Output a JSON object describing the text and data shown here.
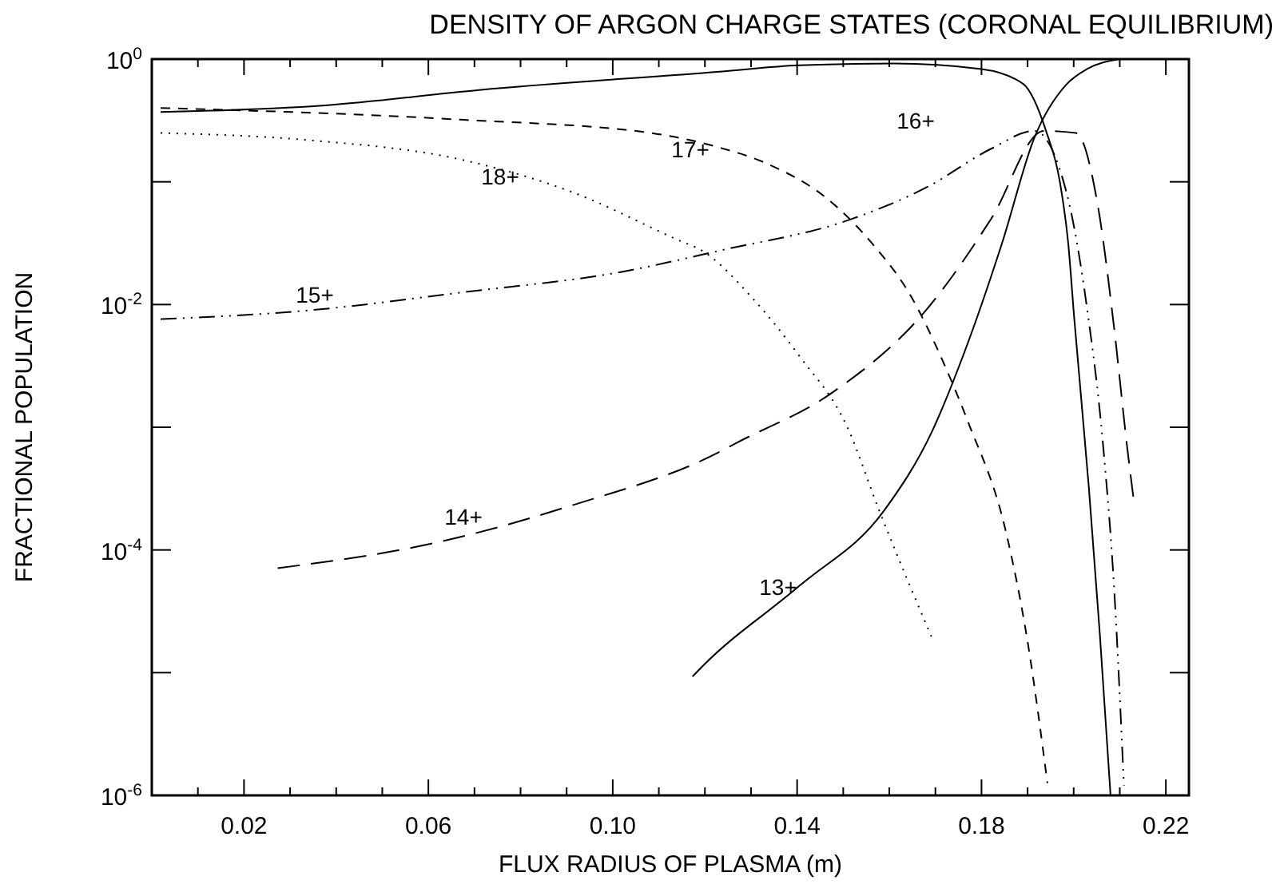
{
  "chart_data": {
    "type": "line",
    "title": "DENSITY OF ARGON CHARGE STATES (CORONAL EQUILIBRIUM)",
    "xlabel": "FLUX RADIUS OF PLASMA (m)",
    "ylabel": "FRACTIONAL POPULATION",
    "log": "y",
    "xlim": [
      0,
      0.225
    ],
    "ylim": [
      1e-06,
      1
    ],
    "xticks": [
      {
        "value": 0.01,
        "label": null
      },
      {
        "value": 0.02,
        "label": "0.02"
      },
      {
        "value": 0.03,
        "label": null
      },
      {
        "value": 0.04,
        "label": null
      },
      {
        "value": 0.05,
        "label": null
      },
      {
        "value": 0.06,
        "label": "0.06"
      },
      {
        "value": 0.07,
        "label": null
      },
      {
        "value": 0.08,
        "label": null
      },
      {
        "value": 0.09,
        "label": null
      },
      {
        "value": 0.1,
        "label": "0.10"
      },
      {
        "value": 0.11,
        "label": null
      },
      {
        "value": 0.12,
        "label": null
      },
      {
        "value": 0.13,
        "label": null
      },
      {
        "value": 0.14,
        "label": "0.14"
      },
      {
        "value": 0.15,
        "label": null
      },
      {
        "value": 0.16,
        "label": null
      },
      {
        "value": 0.17,
        "label": null
      },
      {
        "value": 0.18,
        "label": "0.18"
      },
      {
        "value": 0.19,
        "label": null
      },
      {
        "value": 0.2,
        "label": null
      },
      {
        "value": 0.21,
        "label": null
      },
      {
        "value": 0.22,
        "label": "0.22"
      }
    ],
    "yticks": [
      {
        "value": 1e-06,
        "label": "10$^{-6}$"
      },
      {
        "value": 1e-05,
        "label": null
      },
      {
        "value": 0.0001,
        "label": "10$^{-4}$"
      },
      {
        "value": 0.001,
        "label": null
      },
      {
        "value": 0.01,
        "label": "10$^{-2}$"
      },
      {
        "value": 0.1,
        "label": null
      },
      {
        "value": 1,
        "label": "10$^{0}$"
      }
    ],
    "series": [
      {
        "name": "13+",
        "color": "#000000",
        "line_style": "solid",
        "x": [
          0.1173,
          0.1197,
          0.1405,
          0.1589,
          0.1693,
          0.1762,
          0.1845,
          0.1915,
          0.1984,
          0.2029,
          0.2098
        ],
        "values": [
          9.3e-06,
          1.15e-05,
          5.1e-05,
          0.00021,
          0.00093,
          0.004,
          0.032,
          0.23,
          0.62,
          0.83,
          1.0
        ]
      },
      {
        "name": "14+",
        "color": "#000000",
        "line_style": "longdash",
        "x": [
          0.0273,
          0.0618,
          0.091,
          0.1232,
          0.1267,
          0.1475,
          0.1683,
          0.1821,
          0.1935,
          0.2005,
          0.2053,
          0.2088,
          0.2116,
          0.213
        ],
        "values": [
          7.1e-05,
          0.000115,
          0.00023,
          0.00063,
          0.00074,
          0.0019,
          0.0093,
          0.05,
          0.26,
          0.25,
          0.062,
          0.0063,
          0.00069,
          0.00026
        ]
      },
      {
        "name": "15+",
        "color": "#000000",
        "line_style": "dashdotdot",
        "x": [
          0.0019,
          0.0331,
          0.0677,
          0.1024,
          0.1232,
          0.152,
          0.1683,
          0.1821,
          0.1915,
          0.1984,
          0.2029,
          0.2064,
          0.2088,
          0.2109
        ],
        "values": [
          0.0076,
          0.0089,
          0.0126,
          0.0186,
          0.0275,
          0.05,
          0.091,
          0.186,
          0.26,
          0.083,
          0.0093,
          0.0007,
          4.7e-05,
          1.2e-06
        ]
      },
      {
        "name": "16+",
        "color": "#000000",
        "line_style": "solid",
        "x": [
          0.0019,
          0.0376,
          0.071,
          0.1232,
          0.1405,
          0.161,
          0.18,
          0.189,
          0.194,
          0.197,
          0.1988,
          0.2001,
          0.2033,
          0.2057,
          0.208
        ],
        "values": [
          0.37,
          0.42,
          0.56,
          0.79,
          0.89,
          0.92,
          0.83,
          0.63,
          0.26,
          0.1,
          0.032,
          0.0079,
          0.00032,
          2e-05,
          1e-06
        ]
      },
      {
        "name": "17+",
        "color": "#000000",
        "line_style": "dashed",
        "x": [
          0.0019,
          0.0677,
          0.1083,
          0.1232,
          0.1336,
          0.1475,
          0.1561,
          0.1648,
          0.1717,
          0.1769,
          0.1856,
          0.1901,
          0.1943
        ],
        "values": [
          0.4,
          0.32,
          0.25,
          0.19,
          0.14,
          0.068,
          0.032,
          0.0115,
          0.0034,
          0.00115,
          0.000126,
          1.7e-05,
          1.26e-06
        ]
      },
      {
        "name": "18+",
        "color": "#000000",
        "line_style": "dotted",
        "x": [
          0.0019,
          0.0331,
          0.0677,
          0.091,
          0.1138,
          0.1197,
          0.1301,
          0.1405,
          0.1509,
          0.1578,
          0.1693
        ],
        "values": [
          0.25,
          0.22,
          0.15,
          0.083,
          0.034,
          0.027,
          0.0115,
          0.0038,
          0.001,
          0.00021,
          1.9e-05
        ]
      }
    ]
  }
}
